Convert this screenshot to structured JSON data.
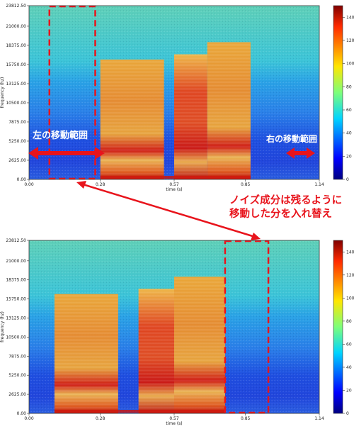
{
  "chart_data": [
    {
      "type": "heatmap",
      "panel": "top",
      "xlabel": "time (s)",
      "ylabel": "frequency (hz)",
      "xlim": [
        0,
        1.14
      ],
      "ylim": [
        0,
        23812.5
      ],
      "x_ticks": [
        "0.00",
        "0.28",
        "0.57",
        "0.85",
        "1.14"
      ],
      "y_ticks": [
        "0.00",
        "2625.00",
        "5250.00",
        "7875.00",
        "10500.00",
        "13125.00",
        "15750.00",
        "18375.00",
        "21000.00",
        "23812.50"
      ],
      "colorbar_ticks": [
        "0",
        "20",
        "40",
        "60",
        "80",
        "100",
        "120",
        "140"
      ],
      "colorbar_range": [
        0,
        150
      ],
      "voiced_segments_s": [
        [
          0.28,
          0.53
        ],
        [
          0.57,
          0.7
        ],
        [
          0.7,
          0.87
        ]
      ],
      "dashed_box_time_s": [
        0.08,
        0.26
      ]
    },
    {
      "type": "heatmap",
      "panel": "bottom",
      "xlabel": "time (s)",
      "ylabel": "frequency (hz)",
      "xlim": [
        0,
        1.14
      ],
      "ylim": [
        0,
        23812.5
      ],
      "x_ticks": [
        "0.00",
        "0.28",
        "0.57",
        "0.85",
        "1.14"
      ],
      "y_ticks": [
        "0.00",
        "2625.00",
        "5250.00",
        "7875.00",
        "10500.00",
        "13125.00",
        "15750.00",
        "18375.00",
        "21000.00",
        "23812.50"
      ],
      "colorbar_ticks": [
        "0",
        "20",
        "40",
        "60",
        "80",
        "100",
        "120",
        "140"
      ],
      "colorbar_range": [
        0,
        150
      ],
      "voiced_segments_s": [
        [
          0.1,
          0.35
        ],
        [
          0.43,
          0.57
        ],
        [
          0.57,
          0.77
        ]
      ],
      "dashed_box_time_s": [
        0.77,
        0.94
      ]
    }
  ],
  "annotations": {
    "left_range": "左の移動範囲",
    "right_range": "右の移動範囲",
    "swap_line1": "ノイズ成分は残るように",
    "swap_line2": "移動した分を入れ替え"
  },
  "colors": {
    "annotation": "#e8141c",
    "background_low": "#1a3fd6",
    "background_mid": "#27b6e6",
    "background_high": "#7fd0a0",
    "voiced_core": "#e84010"
  }
}
